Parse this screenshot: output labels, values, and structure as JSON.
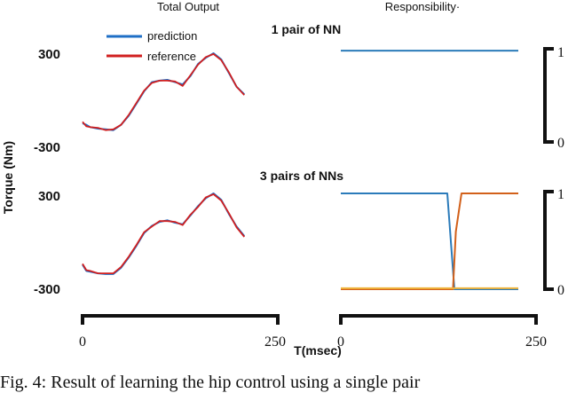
{
  "header": {
    "left_title": "Total Output",
    "right_title": "Responsibility·"
  },
  "legend": {
    "prediction": "prediction",
    "reference": "reference"
  },
  "ylabel": "Torque (Nm)",
  "xlabel": "T(msec)",
  "caption": "Fig. 4: Result of learning the hip control using a single pair",
  "colors": {
    "prediction": "#1f6fc6",
    "reference": "#d11f1f",
    "resp_blue": "#2b7bba",
    "resp_orange": "#d2601a",
    "resp_yellow": "#f0b43c"
  },
  "chart_data": [
    {
      "type": "line",
      "title": "",
      "panel": "top-left",
      "ylim": [
        -300,
        300
      ],
      "xlim": [
        0,
        250
      ],
      "yticks": [
        "300",
        "-300"
      ],
      "series": [
        {
          "name": "prediction",
          "x": [
            0,
            5,
            10,
            20,
            30,
            40,
            50,
            60,
            70,
            80,
            90,
            100,
            110,
            120,
            130,
            140,
            150,
            160,
            170,
            180,
            190,
            200,
            210
          ],
          "y": [
            -160,
            -170,
            -185,
            -195,
            -200,
            -205,
            -170,
            -110,
            -30,
            50,
            110,
            120,
            125,
            110,
            95,
            150,
            230,
            270,
            300,
            260,
            170,
            80,
            30
          ]
        },
        {
          "name": "reference",
          "x": [
            0,
            5,
            10,
            20,
            30,
            40,
            50,
            60,
            70,
            80,
            90,
            100,
            110,
            120,
            130,
            140,
            150,
            160,
            170,
            180,
            190,
            200,
            210
          ],
          "y": [
            -150,
            -180,
            -185,
            -190,
            -205,
            -200,
            -170,
            -105,
            -25,
            55,
            105,
            120,
            120,
            115,
            85,
            155,
            225,
            275,
            295,
            255,
            175,
            80,
            25
          ]
        }
      ]
    },
    {
      "type": "line",
      "title": "1 pair of NN",
      "panel": "top-right",
      "ylim": [
        0,
        1
      ],
      "yticks": [
        "1",
        "0"
      ],
      "series": [
        {
          "x": [
            0,
            250
          ],
          "y": [
            0.98,
            0.98
          ],
          "color": "resp_blue"
        }
      ]
    },
    {
      "type": "line",
      "title": "",
      "panel": "bottom-left",
      "ylim": [
        -300,
        300
      ],
      "xlim": [
        0,
        250
      ],
      "yticks": [
        "300",
        "-300"
      ],
      "xticks": [
        "0",
        "250"
      ],
      "series": [
        {
          "name": "prediction",
          "x": [
            0,
            5,
            10,
            20,
            30,
            40,
            50,
            60,
            70,
            80,
            90,
            100,
            110,
            120,
            130,
            140,
            150,
            160,
            170,
            180,
            190,
            200,
            210
          ],
          "y": [
            -150,
            -190,
            -195,
            -205,
            -210,
            -210,
            -170,
            -105,
            -30,
            50,
            95,
            120,
            130,
            115,
            105,
            160,
            220,
            270,
            300,
            260,
            170,
            90,
            30
          ]
        },
        {
          "name": "reference",
          "x": [
            0,
            5,
            10,
            20,
            30,
            40,
            50,
            60,
            70,
            80,
            90,
            100,
            110,
            120,
            130,
            140,
            150,
            160,
            170,
            180,
            190,
            200,
            210
          ],
          "y": [
            -145,
            -185,
            -190,
            -205,
            -205,
            -205,
            -165,
            -100,
            -25,
            55,
            90,
            125,
            125,
            120,
            100,
            165,
            215,
            275,
            295,
            255,
            175,
            85,
            25
          ]
        }
      ]
    },
    {
      "type": "line",
      "title": "3 pairs of NNs",
      "panel": "bottom-right",
      "ylim": [
        0,
        1
      ],
      "yticks": [
        "1",
        "0"
      ],
      "xticks": [
        "0",
        "250"
      ],
      "series": [
        {
          "x": [
            0,
            150,
            155,
            160,
            250
          ],
          "y": [
            1,
            1,
            0.5,
            0,
            0
          ],
          "color": "resp_blue"
        },
        {
          "x": [
            0,
            158,
            162,
            170,
            250
          ],
          "y": [
            0,
            0,
            0.6,
            1,
            1
          ],
          "color": "resp_orange"
        },
        {
          "x": [
            0,
            250
          ],
          "y": [
            0.01,
            0.01
          ],
          "color": "resp_yellow"
        }
      ]
    }
  ]
}
